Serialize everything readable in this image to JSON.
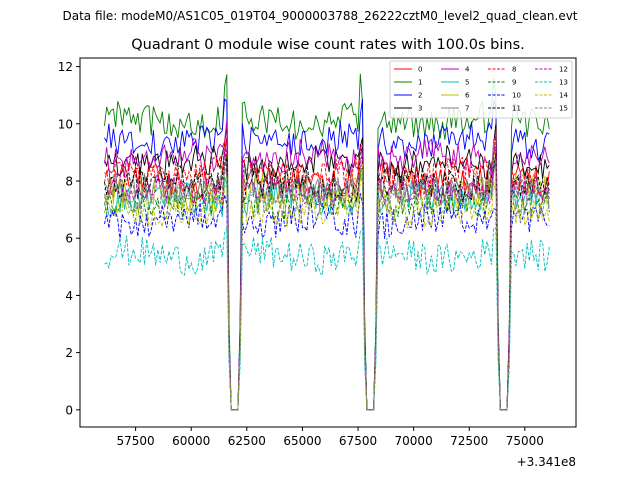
{
  "chart_data": {
    "type": "line",
    "suptitle": "Data file: modeM0/AS1C05_019T04_9000003788_26222cztM0_level2_quad_clean.evt",
    "title": "Quadrant 0 module wise count rates with 100.0s bins.",
    "xlabel": "",
    "ylabel": "",
    "x_offset_label": "+3.341e8",
    "xlim": [
      55000,
      77300
    ],
    "ylim": [
      -0.6,
      12.3
    ],
    "x_ticks": [
      57500,
      60000,
      62500,
      65000,
      67500,
      70000,
      72500,
      75000
    ],
    "x_tick_labels": [
      "57500",
      "60000",
      "62500",
      "65000",
      "67500",
      "70000",
      "72500",
      "75000"
    ],
    "y_ticks": [
      0,
      2,
      4,
      6,
      8,
      10,
      12
    ],
    "y_tick_labels": [
      "0",
      "2",
      "4",
      "6",
      "8",
      "10",
      "12"
    ],
    "legend_position": "upper right",
    "x_range": [
      56100,
      76100
    ],
    "bin_seconds": 100,
    "gaps": [
      [
        61750,
        62150
      ],
      [
        67850,
        68250
      ],
      [
        73850,
        74250
      ]
    ],
    "series": [
      {
        "name": "0",
        "color": "#ff0000",
        "dash": "solid",
        "level": 8.0
      },
      {
        "name": "1",
        "color": "#008000",
        "dash": "solid",
        "level": 10.1
      },
      {
        "name": "2",
        "color": "#0000ff",
        "dash": "solid",
        "level": 9.4
      },
      {
        "name": "3",
        "color": "#000000",
        "dash": "solid",
        "level": 8.6
      },
      {
        "name": "4",
        "color": "#bf00bf",
        "dash": "solid",
        "level": 8.8
      },
      {
        "name": "5",
        "color": "#00bfbf",
        "dash": "solid",
        "level": 7.4
      },
      {
        "name": "6",
        "color": "#bfbf00",
        "dash": "solid",
        "level": 7.6
      },
      {
        "name": "7",
        "color": "#808080",
        "dash": "solid",
        "level": 7.8
      },
      {
        "name": "8",
        "color": "#ff0000",
        "dash": "dashed",
        "level": 8.2
      },
      {
        "name": "9",
        "color": "#008000",
        "dash": "dashed",
        "level": 7.2
      },
      {
        "name": "10",
        "color": "#0000ff",
        "dash": "dashed",
        "level": 6.6
      },
      {
        "name": "11",
        "color": "#000000",
        "dash": "dashed",
        "level": 7.9
      },
      {
        "name": "12",
        "color": "#bf00bf",
        "dash": "dashed",
        "level": 7.7
      },
      {
        "name": "13",
        "color": "#00bfbf",
        "dash": "dashed",
        "level": 5.4
      },
      {
        "name": "14",
        "color": "#bfbf00",
        "dash": "dashed",
        "level": 7.0
      },
      {
        "name": "15",
        "color": "#808080",
        "dash": "dashed",
        "level": 7.5
      }
    ]
  }
}
